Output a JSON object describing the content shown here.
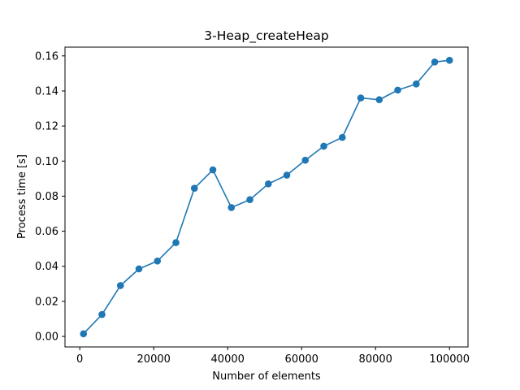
{
  "chart_data": {
    "type": "line",
    "title": "3-Heap_createHeap",
    "xlabel": "Number of elements",
    "ylabel": "Process time [s]",
    "xlim": [
      -4000,
      105000
    ],
    "ylim": [
      -0.006,
      0.165
    ],
    "xticks": [
      0,
      20000,
      40000,
      60000,
      80000,
      100000
    ],
    "xtick_labels": [
      "0",
      "20000",
      "40000",
      "60000",
      "80000",
      "100000"
    ],
    "yticks": [
      0.0,
      0.02,
      0.04,
      0.06,
      0.08,
      0.1,
      0.12,
      0.14,
      0.16
    ],
    "ytick_labels": [
      "0.00",
      "0.02",
      "0.04",
      "0.06",
      "0.08",
      "0.10",
      "0.12",
      "0.14",
      "0.16"
    ],
    "grid": false,
    "series": [
      {
        "color": "#1f77b4",
        "marker": "circle",
        "x": [
          1000,
          6000,
          11000,
          16000,
          21000,
          26000,
          31000,
          36000,
          41000,
          46000,
          51000,
          56000,
          61000,
          66000,
          71000,
          76000,
          81000,
          86000,
          91000,
          96000,
          100000
        ],
        "y": [
          0.0015,
          0.0125,
          0.029,
          0.0385,
          0.043,
          0.0535,
          0.0845,
          0.095,
          0.0735,
          0.078,
          0.087,
          0.092,
          0.1005,
          0.1085,
          0.1135,
          0.136,
          0.135,
          0.1405,
          0.144,
          0.1565,
          0.1575
        ]
      }
    ]
  }
}
